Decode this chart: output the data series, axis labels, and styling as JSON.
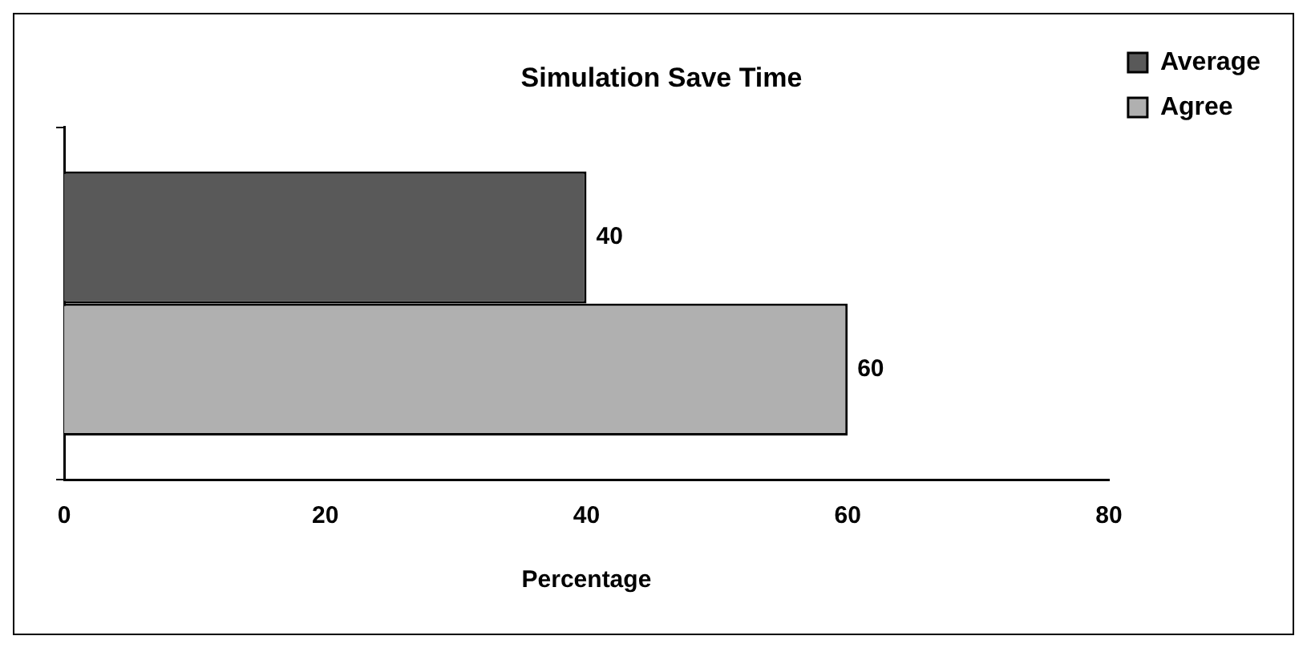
{
  "chart_data": {
    "type": "bar",
    "orientation": "horizontal",
    "title": "Simulation Save Time",
    "xlabel": "Percentage",
    "categories": [
      null
    ],
    "series": [
      {
        "name": "Average",
        "color": "#595959",
        "values": [
          40
        ]
      },
      {
        "name": "Agree",
        "color": "#b0b0b0",
        "values": [
          60
        ]
      }
    ],
    "xlim": [
      0,
      80
    ],
    "xticks": [
      0,
      20,
      40,
      60,
      80
    ],
    "grid": false,
    "legend": "top right",
    "data_labels": true
  }
}
